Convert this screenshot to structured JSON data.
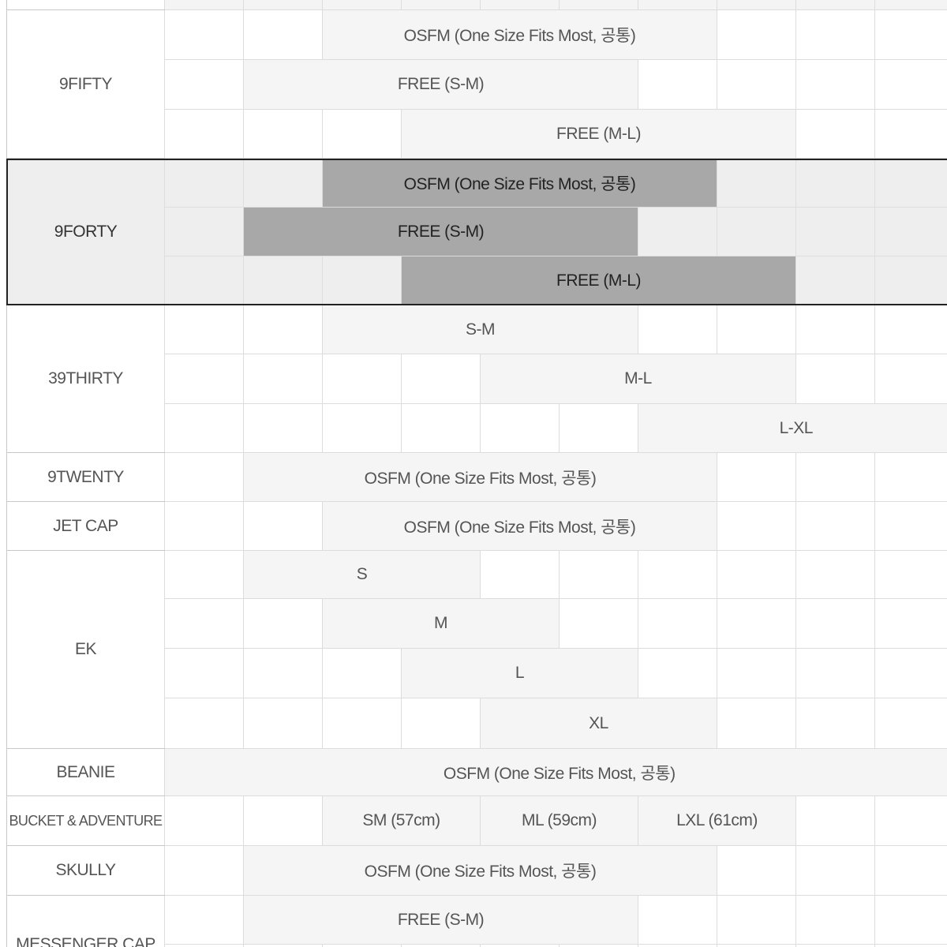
{
  "groups": [
    {
      "label": "",
      "rows": [
        {
          "spans": []
        }
      ]
    },
    {
      "label": "9FIFTY",
      "rows": [
        {
          "spans": [
            {
              "start": 2,
              "len": 5,
              "text": "OSFM (One Size Fits Most, 공통)"
            }
          ]
        },
        {
          "spans": [
            {
              "start": 1,
              "len": 5,
              "text": "FREE (S-M)"
            }
          ]
        },
        {
          "spans": [
            {
              "start": 3,
              "len": 5,
              "text": "FREE (M-L)"
            }
          ]
        }
      ]
    },
    {
      "label": "9FORTY",
      "highlight": true,
      "rows": [
        {
          "spans": [
            {
              "start": 2,
              "len": 5,
              "text": "OSFM (One Size Fits Most, 공통)"
            }
          ]
        },
        {
          "spans": [
            {
              "start": 1,
              "len": 5,
              "text": "FREE (S-M)"
            }
          ]
        },
        {
          "spans": [
            {
              "start": 3,
              "len": 5,
              "text": "FREE (M-L)"
            }
          ]
        }
      ]
    },
    {
      "label": "39THIRTY",
      "rows": [
        {
          "spans": [
            {
              "start": 2,
              "len": 4,
              "text": "S-M"
            }
          ]
        },
        {
          "spans": [
            {
              "start": 4,
              "len": 4,
              "text": "M-L"
            }
          ]
        },
        {
          "spans": [
            {
              "start": 6,
              "len": 4,
              "text": "L-XL"
            }
          ]
        }
      ]
    },
    {
      "label": "9TWENTY",
      "rows": [
        {
          "spans": [
            {
              "start": 1,
              "len": 6,
              "text": "OSFM (One Size Fits Most, 공통)"
            }
          ]
        }
      ]
    },
    {
      "label": "JET CAP",
      "rows": [
        {
          "spans": [
            {
              "start": 2,
              "len": 5,
              "text": "OSFM (One Size Fits Most, 공통)"
            }
          ]
        }
      ]
    },
    {
      "label": "EK",
      "rows": [
        {
          "spans": [
            {
              "start": 1,
              "len": 3,
              "text": "S"
            }
          ]
        },
        {
          "spans": [
            {
              "start": 2,
              "len": 3,
              "text": "M"
            }
          ]
        },
        {
          "spans": [
            {
              "start": 3,
              "len": 3,
              "text": "L"
            }
          ]
        },
        {
          "spans": [
            {
              "start": 4,
              "len": 3,
              "text": "XL"
            }
          ]
        }
      ]
    },
    {
      "label": "BEANIE",
      "rows": [
        {
          "spans": [
            {
              "start": 0,
              "len": 10,
              "text": "OSFM (One Size Fits Most, 공통)"
            }
          ]
        }
      ]
    },
    {
      "label": "BUCKET & ADVENTURE",
      "small": true,
      "rows": [
        {
          "spans": [
            {
              "start": 2,
              "len": 2,
              "text": "SM (57cm)"
            },
            {
              "start": 4,
              "len": 2,
              "text": "ML (59cm)"
            },
            {
              "start": 6,
              "len": 2,
              "text": "LXL (61cm)"
            }
          ]
        }
      ]
    },
    {
      "label": "SKULLY",
      "rows": [
        {
          "spans": [
            {
              "start": 1,
              "len": 6,
              "text": "OSFM (One Size Fits Most, 공통)"
            }
          ]
        }
      ]
    },
    {
      "label": "MESSENGER CAP",
      "rows": [
        {
          "spans": [
            {
              "start": 1,
              "len": 5,
              "text": "FREE (S-M)"
            }
          ]
        },
        {
          "spans": []
        }
      ]
    }
  ]
}
